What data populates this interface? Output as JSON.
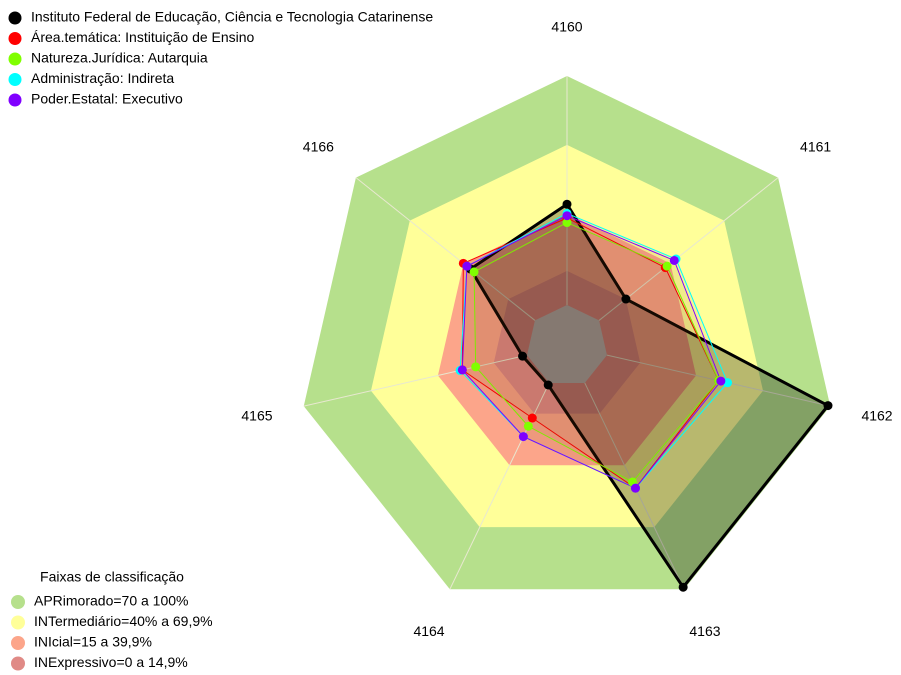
{
  "chart_data": {
    "type": "radar",
    "categories": [
      "4160",
      "4161",
      "4162",
      "4163",
      "4164",
      "4165",
      "4166"
    ],
    "ylim": [
      0,
      100
    ],
    "series": [
      {
        "name": "Instituto Federal de Educação, Ciência e Tecnologia Catarinense",
        "color": "#000000",
        "values": [
          44,
          15,
          99,
          99,
          1,
          2,
          36
        ]
      },
      {
        "name": "Área.temática: Instituição de Ensino",
        "color": "#ff0000",
        "values": [
          38,
          37,
          50,
          51,
          17,
          29,
          40
        ]
      },
      {
        "name": "Natureza.Jurídica: Autarquia",
        "color": "#80ff00",
        "values": [
          36,
          38,
          50,
          48,
          21,
          23,
          34
        ]
      },
      {
        "name": "Administração: Indireta",
        "color": "#00ffff",
        "values": [
          40,
          43,
          54,
          51,
          26,
          30,
          38
        ]
      },
      {
        "name": "Poder.Estatal: Executivo",
        "color": "#8000ff",
        "values": [
          39,
          42,
          51,
          51,
          26,
          29,
          38
        ]
      }
    ],
    "band_legend_title": "Faixas de classificação",
    "bands": [
      {
        "label": "APRimorado=70 a 100%",
        "from": 70,
        "to": 100,
        "color": "#b6e08c"
      },
      {
        "label": "INTermediário=40% a 69,9%",
        "from": 40,
        "to": 69.9,
        "color": "#ffff99"
      },
      {
        "label": "INIcial=15 a 39,9%",
        "from": 15,
        "to": 39.9,
        "color": "#fca58a"
      },
      {
        "label": "INExpressivo=0 a 14,9%",
        "from": 0,
        "to": 14.9,
        "color": "#e08a86"
      }
    ]
  }
}
